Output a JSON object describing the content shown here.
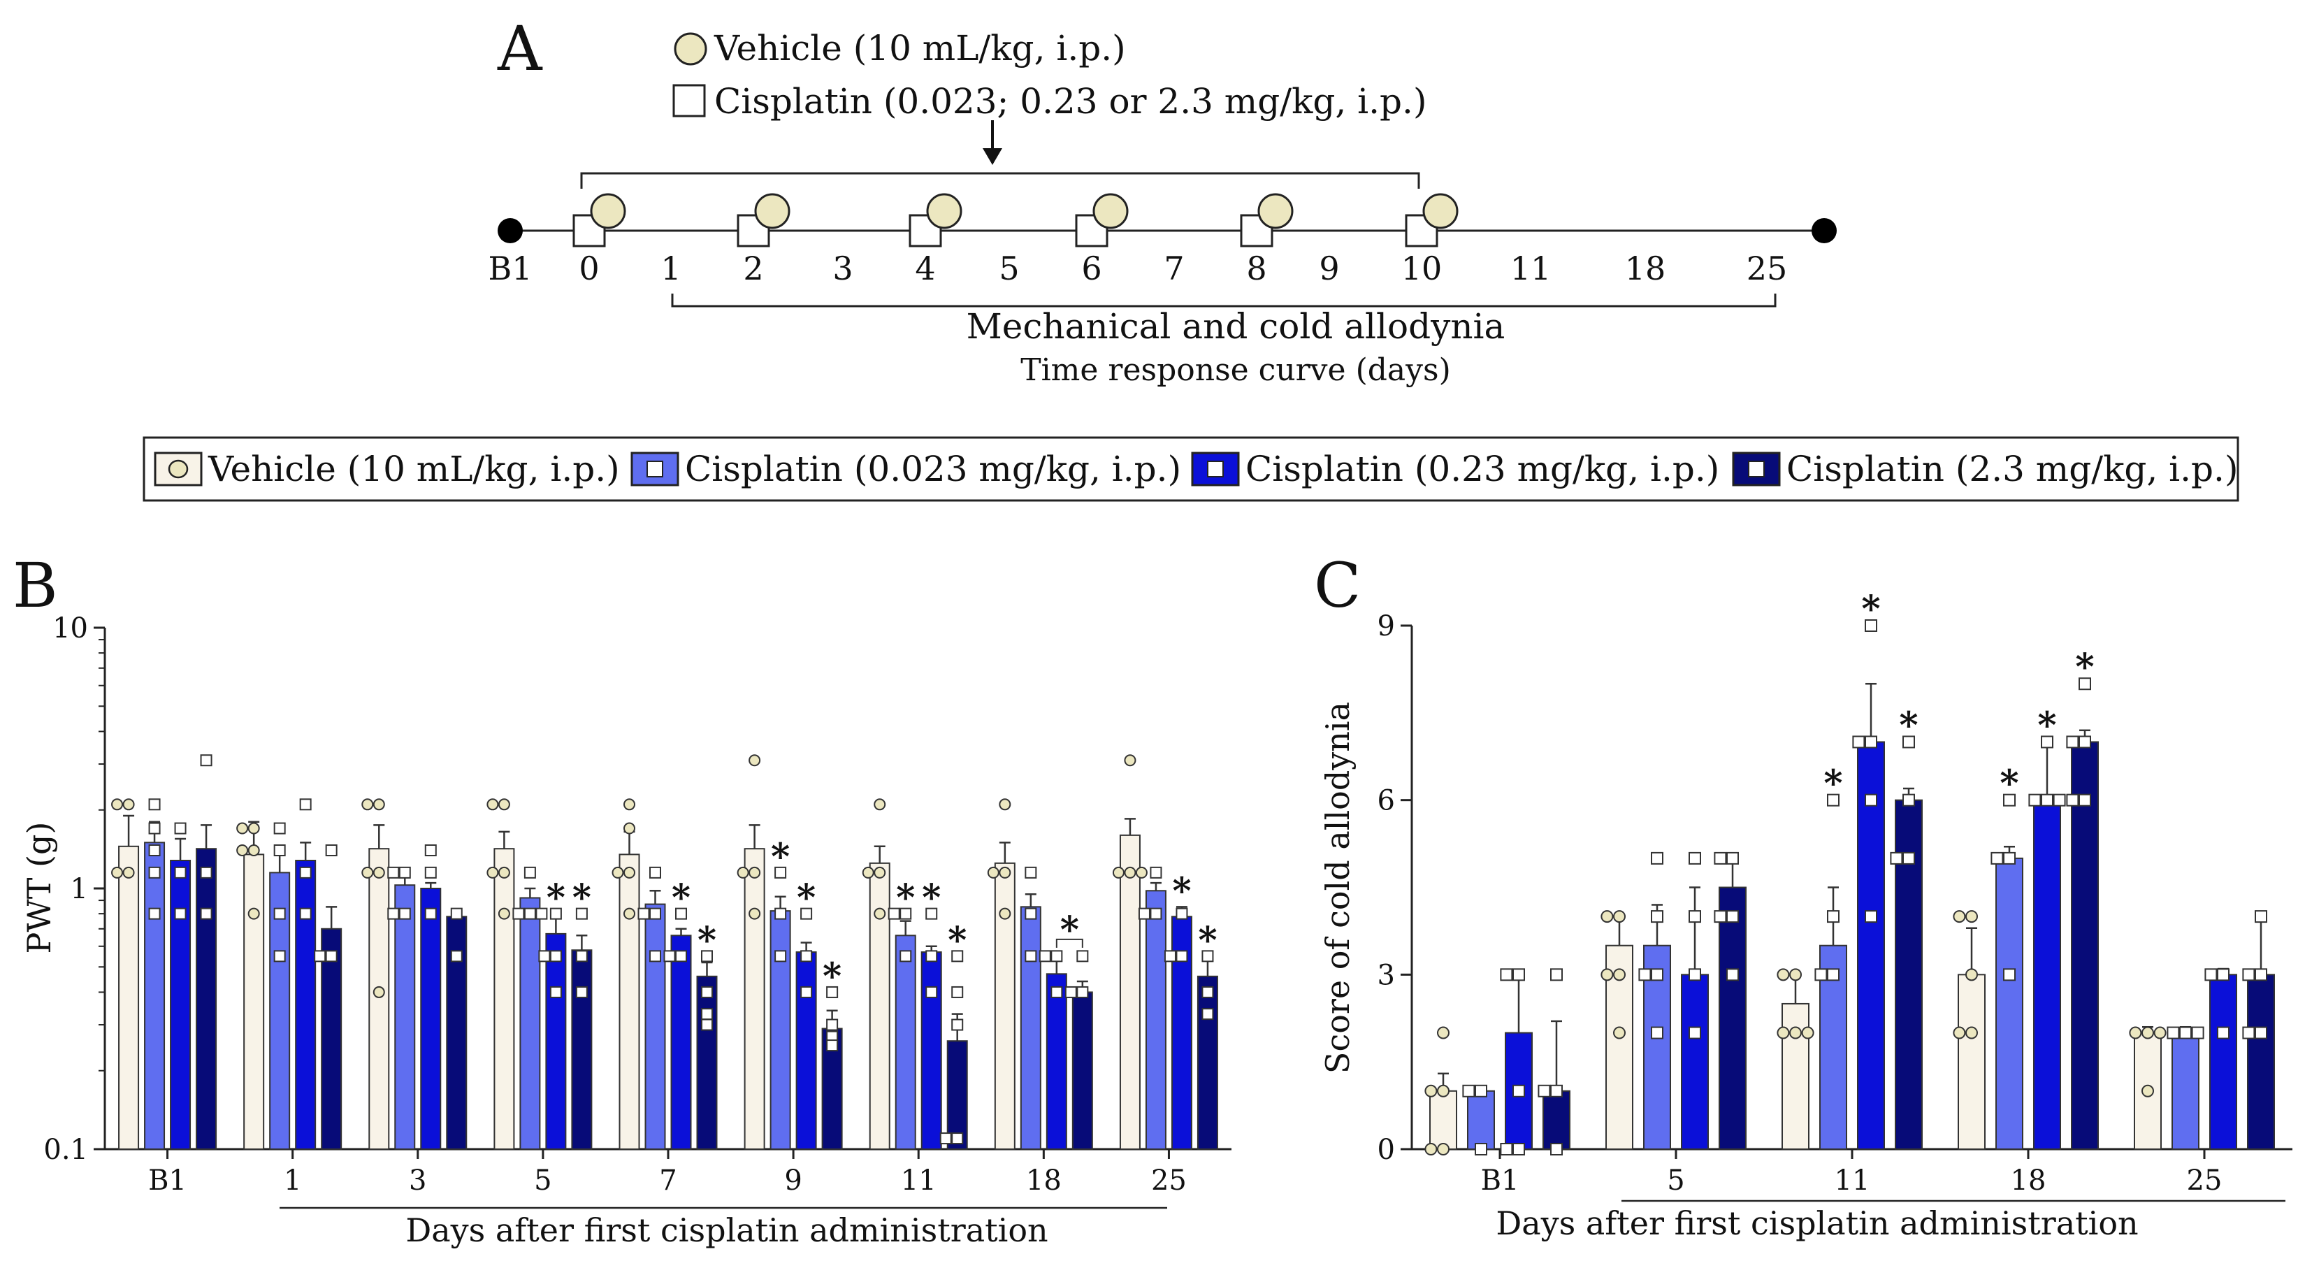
{
  "colors": {
    "vehicle": "#f8f3e8",
    "vehicle_marker": "#ece7c0",
    "low": "#5f6ef0",
    "mid": "#0b10d8",
    "high": "#070b78",
    "star_low": "#6b78ef",
    "star_mid": "#1119c9",
    "star_high": "#070b78",
    "axis": "#222222"
  },
  "panel_a": {
    "label": "A",
    "legend_vehicle": "Vehicle (10 mL/kg, i.p.)",
    "legend_cisplatin": "Cisplatin (0.023; 0.23 or 2.3 mg/kg, i.p.)",
    "days": [
      "B1",
      "0",
      "1",
      "2",
      "3",
      "4",
      "5",
      "6",
      "7",
      "8",
      "9",
      "10",
      "11",
      "18",
      "25"
    ],
    "dosing_days": [
      "0",
      "2",
      "4",
      "6",
      "8",
      "10"
    ],
    "caption_main": "Mechanical and cold allodynia",
    "caption_sub": "Time response curve (days)"
  },
  "legend": [
    {
      "key": "vehicle",
      "label": "Vehicle (10 mL/kg, i.p.)"
    },
    {
      "key": "low",
      "label": "Cisplatin (0.023 mg/kg, i.p.)"
    },
    {
      "key": "mid",
      "label": "Cisplatin (0.23 mg/kg, i.p.)"
    },
    {
      "key": "high",
      "label": "Cisplatin (2.3 mg/kg, i.p.)"
    }
  ],
  "chart_data": [
    {
      "panel": "B",
      "type": "bar",
      "scale": "log",
      "ylabel": "PWT (g)",
      "xlabel": "Days after first cisplatin administration",
      "ylim": [
        0.1,
        10
      ],
      "yticks": [
        "0.1",
        "1",
        "10"
      ],
      "categories": [
        "B1",
        "1",
        "3",
        "5",
        "7",
        "9",
        "11",
        "18",
        "25"
      ],
      "series": [
        {
          "name": "Vehicle (10 mL/kg, i.p.)",
          "key": "vehicle",
          "values": [
            1.45,
            1.35,
            1.42,
            1.42,
            1.35,
            1.42,
            1.25,
            1.25,
            1.6
          ],
          "errors": [
            1.9,
            1.8,
            1.75,
            1.65,
            1.65,
            1.75,
            1.45,
            1.5,
            1.85
          ]
        },
        {
          "name": "Cisplatin (0.023 mg/kg, i.p.)",
          "key": "low",
          "values": [
            1.5,
            1.15,
            1.03,
            0.92,
            0.87,
            0.82,
            0.66,
            0.85,
            0.98
          ],
          "errors": [
            1.8,
            1.35,
            1.1,
            1.0,
            0.98,
            0.93,
            0.75,
            0.95,
            1.05
          ]
        },
        {
          "name": "Cisplatin (0.23 mg/kg, i.p.)",
          "key": "mid",
          "values": [
            1.28,
            1.28,
            1.0,
            0.67,
            0.66,
            0.57,
            0.57,
            0.47,
            0.78
          ],
          "errors": [
            1.55,
            1.5,
            1.05,
            0.77,
            0.7,
            0.62,
            0.6,
            0.53,
            0.85
          ]
        },
        {
          "name": "Cisplatin (2.3 mg/kg, i.p.)",
          "key": "high",
          "values": [
            1.42,
            0.7,
            0.78,
            0.58,
            0.46,
            0.29,
            0.26,
            0.4,
            0.46
          ],
          "errors": [
            1.75,
            0.85,
            0.8,
            0.66,
            0.52,
            0.34,
            0.33,
            0.44,
            0.53
          ]
        }
      ],
      "points": [
        [
          [
            2.1,
            2.1,
            1.15,
            1.15
          ],
          [
            1.7,
            1.7,
            1.4,
            1.4,
            0.8
          ],
          [
            2.1,
            2.1,
            1.15,
            1.15,
            0.4
          ],
          [
            2.1,
            2.1,
            1.15,
            1.15,
            0.8
          ],
          [
            2.1,
            1.7,
            1.15,
            1.15,
            0.8
          ],
          [
            3.1,
            1.15,
            1.15,
            0.8
          ],
          [
            2.1,
            1.15,
            1.15,
            0.8
          ],
          [
            2.1,
            1.15,
            1.15,
            0.8
          ],
          [
            3.1,
            1.15,
            1.15,
            1.15
          ]
        ],
        [
          [
            2.1,
            1.7,
            1.4,
            1.15,
            0.8
          ],
          [
            1.7,
            1.4,
            0.8,
            0.55
          ],
          [
            1.15,
            1.15,
            0.8,
            0.8
          ],
          [
            1.15,
            0.8,
            0.8,
            0.8
          ],
          [
            1.15,
            0.8,
            0.8,
            0.55
          ],
          [
            1.15,
            0.8,
            0.55
          ],
          [
            0.8,
            0.8,
            0.55
          ],
          [
            1.15,
            0.8,
            0.55
          ],
          [
            1.15,
            0.8,
            0.8
          ]
        ],
        [
          [
            1.7,
            1.15,
            0.8
          ],
          [
            2.1,
            1.15,
            0.8
          ],
          [
            1.4,
            1.15,
            0.8
          ],
          [
            0.8,
            0.55,
            0.55,
            0.4
          ],
          [
            0.8,
            0.55,
            0.55
          ],
          [
            0.8,
            0.55,
            0.4
          ],
          [
            0.8,
            0.55,
            0.4
          ],
          [
            0.55,
            0.55,
            0.4
          ],
          [
            0.8,
            0.55,
            0.55
          ]
        ],
        [
          [
            3.1,
            1.15,
            0.8
          ],
          [
            1.4,
            0.55,
            0.55
          ],
          [
            0.8,
            0.55
          ],
          [
            0.8,
            0.55,
            0.4
          ],
          [
            0.55,
            0.4,
            0.33,
            0.3
          ],
          [
            0.4,
            0.3,
            0.27,
            0.25
          ],
          [
            0.55,
            0.4,
            0.3,
            0.11,
            0.11
          ],
          [
            0.55,
            0.4,
            0.4
          ],
          [
            0.55,
            0.4,
            0.33
          ]
        ]
      ],
      "significance": [
        {
          "category": "9",
          "series": "low",
          "label": "*"
        },
        {
          "category": "11",
          "series": "low",
          "label": "*"
        },
        {
          "category": "5",
          "series": "mid",
          "label": "*"
        },
        {
          "category": "7",
          "series": "mid",
          "label": "*"
        },
        {
          "category": "9",
          "series": "mid",
          "label": "*"
        },
        {
          "category": "11",
          "series": "mid",
          "label": "*"
        },
        {
          "category": "25",
          "series": "mid",
          "label": "*"
        },
        {
          "category": "5",
          "series": "high",
          "label": "*"
        },
        {
          "category": "7",
          "series": "high",
          "label": "*"
        },
        {
          "category": "9",
          "series": "high",
          "label": "*"
        },
        {
          "category": "11",
          "series": "high",
          "label": "*"
        },
        {
          "category": "25",
          "series": "high",
          "label": "*"
        },
        {
          "category": "18",
          "series": "mid-high",
          "label": "*"
        }
      ]
    },
    {
      "panel": "C",
      "type": "bar",
      "scale": "linear",
      "ylabel": "Score of cold allodynia",
      "xlabel": "Days after first cisplatin administration",
      "ylim": [
        0,
        9
      ],
      "yticks": [
        "0",
        "3",
        "6",
        "9"
      ],
      "categories": [
        "B1",
        "5",
        "11",
        "18",
        "25"
      ],
      "series": [
        {
          "name": "Vehicle (10 mL/kg, i.p.)",
          "key": "vehicle",
          "values": [
            1.0,
            3.5,
            2.5,
            3.0,
            2.0
          ],
          "errors": [
            1.3,
            4.0,
            3.0,
            3.8,
            2.1
          ]
        },
        {
          "name": "Cisplatin (0.023 mg/kg, i.p.)",
          "key": "low",
          "values": [
            1.0,
            3.5,
            3.5,
            5.0,
            2.0
          ],
          "errors": [
            1.0,
            4.2,
            4.5,
            5.2,
            2.1
          ]
        },
        {
          "name": "Cisplatin (0.23 mg/kg, i.p.)",
          "key": "mid",
          "values": [
            2.0,
            3.0,
            7.0,
            6.0,
            3.0
          ],
          "errors": [
            3.0,
            4.5,
            8.0,
            7.0,
            3.1
          ]
        },
        {
          "name": "Cisplatin (2.3 mg/kg, i.p.)",
          "key": "high",
          "values": [
            1.0,
            4.5,
            6.0,
            7.0,
            3.0
          ],
          "errors": [
            2.2,
            5.0,
            6.2,
            7.2,
            4.0
          ]
        }
      ],
      "points": [
        [
          [
            2,
            1,
            1,
            0,
            0
          ],
          [
            4,
            4,
            3,
            3,
            2
          ],
          [
            3,
            3,
            2,
            2,
            2
          ],
          [
            4,
            4,
            3,
            2,
            2
          ],
          [
            2,
            2,
            2,
            1
          ]
        ],
        [
          [
            1,
            1,
            0
          ],
          [
            5,
            4,
            3,
            3,
            2
          ],
          [
            4,
            3,
            3,
            6
          ],
          [
            6,
            5,
            5,
            3
          ],
          [
            2,
            2,
            2
          ]
        ],
        [
          [
            3,
            3,
            1,
            0,
            0
          ],
          [
            5,
            4,
            3,
            2
          ],
          [
            7,
            7,
            6,
            4,
            9
          ],
          [
            7,
            6,
            6,
            6
          ],
          [
            3,
            3,
            2
          ]
        ],
        [
          [
            3,
            1,
            1,
            0
          ],
          [
            5,
            5,
            4,
            4,
            3
          ],
          [
            7,
            6,
            5,
            5
          ],
          [
            8,
            7,
            7,
            6,
            6
          ],
          [
            4,
            3,
            3,
            2,
            2
          ]
        ]
      ],
      "significance": [
        {
          "category": "11",
          "series": "low",
          "label": "*"
        },
        {
          "category": "18",
          "series": "low",
          "label": "*"
        },
        {
          "category": "11",
          "series": "mid",
          "label": "*"
        },
        {
          "category": "18",
          "series": "mid",
          "label": "*"
        },
        {
          "category": "11",
          "series": "high",
          "label": "*"
        },
        {
          "category": "18",
          "series": "high",
          "label": "*"
        }
      ]
    }
  ]
}
